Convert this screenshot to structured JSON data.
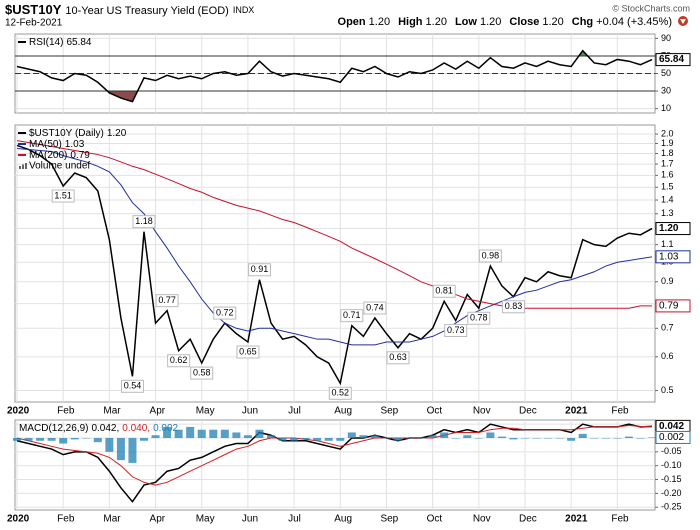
{
  "header": {
    "symbol": "$UST10Y",
    "description": "10-Year US Treasury Yield (EOD)",
    "exchange": "INDX",
    "date": "12-Feb-2021",
    "source": "© StockCharts.com",
    "quote": [
      {
        "label": "Open",
        "value": "1.20"
      },
      {
        "label": "High",
        "value": "1.20"
      },
      {
        "label": "Low",
        "value": "1.20"
      },
      {
        "label": "Close",
        "value": "1.20"
      },
      {
        "label": "Chg",
        "value": "+0.04 (+3.45%)"
      }
    ]
  },
  "chart_data": [
    {
      "type": "line",
      "log": true,
      "ylim": [
        0.47,
        2.1
      ],
      "grid": true,
      "yticks": [
        {
          "value": 2,
          "label": "2.0"
        },
        1.9,
        1.8,
        1.7,
        1.6,
        1.5,
        1.4,
        1.3,
        1.2,
        1.1,
        {
          "value": 1,
          "label": "1.0"
        },
        0.9,
        0.8,
        0.7,
        0.6,
        0.5
      ],
      "categories": [
        "2020",
        null,
        null,
        null,
        "Feb",
        null,
        null,
        null,
        "Mar",
        null,
        null,
        null,
        "Apr",
        null,
        null,
        null,
        "May",
        null,
        null,
        null,
        "Jun",
        null,
        null,
        null,
        "Jul",
        null,
        null,
        null,
        "Aug",
        null,
        null,
        null,
        "Sep",
        null,
        null,
        null,
        "Oct",
        null,
        null,
        null,
        "Nov",
        null,
        null,
        null,
        "Dec",
        null,
        null,
        null,
        "2021",
        null,
        null,
        null,
        "Feb",
        null,
        null,
        null
      ],
      "volume_label": "Volume undef",
      "series": [
        {
          "name": "$UST10Y (Daily)",
          "color": "#000000",
          "label_last": true,
          "values": [
            1.88,
            1.84,
            1.78,
            1.7,
            1.51,
            1.62,
            1.58,
            1.47,
            1.13,
            0.74,
            0.54,
            1.18,
            0.72,
            0.77,
            0.62,
            0.66,
            0.58,
            0.66,
            0.72,
            0.68,
            0.65,
            0.91,
            0.72,
            0.66,
            0.67,
            0.64,
            0.6,
            0.58,
            0.52,
            0.71,
            0.67,
            0.74,
            0.68,
            0.63,
            0.68,
            0.66,
            0.7,
            0.81,
            0.73,
            0.84,
            0.78,
            0.98,
            0.88,
            0.83,
            0.92,
            0.9,
            0.95,
            0.93,
            0.92,
            1.13,
            1.1,
            1.09,
            1.14,
            1.17,
            1.16,
            1.2
          ],
          "value_labels": [
            null,
            null,
            null,
            null,
            "1.51",
            null,
            null,
            null,
            null,
            null,
            "0.54",
            "1.18",
            null,
            "0.77",
            "0.62",
            null,
            "0.58",
            null,
            "0.72",
            null,
            "0.65",
            "0.91",
            null,
            null,
            null,
            null,
            null,
            null,
            "0.52",
            "0.71",
            null,
            "0.74",
            null,
            "0.63",
            null,
            null,
            null,
            "0.81",
            "0.73",
            null,
            "0.78",
            "0.98",
            null,
            "0.83",
            null,
            null,
            null,
            null,
            null,
            null,
            null,
            null,
            null,
            null,
            null,
            "1.20"
          ]
        },
        {
          "name": "MA(50)",
          "color": "#1f2f9f",
          "label_last": true,
          "values": [
            1.85,
            1.84,
            1.83,
            1.82,
            1.78,
            1.75,
            1.72,
            1.68,
            1.63,
            1.52,
            1.38,
            1.3,
            1.18,
            1.08,
            0.98,
            0.9,
            0.82,
            0.76,
            0.72,
            0.7,
            0.69,
            0.7,
            0.7,
            0.69,
            0.68,
            0.67,
            0.66,
            0.66,
            0.65,
            0.64,
            0.64,
            0.64,
            0.65,
            0.65,
            0.65,
            0.66,
            0.67,
            0.69,
            0.72,
            0.75,
            0.77,
            0.79,
            0.81,
            0.83,
            0.85,
            0.86,
            0.88,
            0.9,
            0.91,
            0.93,
            0.95,
            0.98,
            1.0,
            1.01,
            1.02,
            1.03
          ]
        },
        {
          "name": "MA(200)",
          "color": "#c8102e",
          "label_last": true,
          "values": [
            1.93,
            1.91,
            1.89,
            1.87,
            1.85,
            1.83,
            1.81,
            1.79,
            1.76,
            1.72,
            1.68,
            1.65,
            1.61,
            1.57,
            1.53,
            1.49,
            1.46,
            1.42,
            1.39,
            1.36,
            1.34,
            1.32,
            1.29,
            1.26,
            1.24,
            1.21,
            1.18,
            1.15,
            1.12,
            1.08,
            1.05,
            1.02,
            0.99,
            0.96,
            0.93,
            0.9,
            0.88,
            0.86,
            0.84,
            0.82,
            0.81,
            0.8,
            0.79,
            0.78,
            0.78,
            0.78,
            0.78,
            0.78,
            0.78,
            0.78,
            0.78,
            0.78,
            0.78,
            0.78,
            0.79,
            0.79
          ]
        }
      ]
    },
    {
      "type": "line",
      "ylim": [
        5,
        95
      ],
      "yticks": [
        90,
        70,
        50,
        30,
        10
      ],
      "grid": true,
      "levels": [
        {
          "value": 70,
          "dashed": false,
          "fill": "#4c8f53",
          "side": "above"
        },
        {
          "value": 50,
          "dashed": true
        },
        {
          "value": 30,
          "dashed": false,
          "fill": "#8b4b4b",
          "side": "below"
        }
      ],
      "series": [
        {
          "name": "RSI(14)",
          "color": "#000000",
          "label_last": true,
          "values": [
            58,
            55,
            52,
            45,
            42,
            50,
            48,
            40,
            28,
            22,
            18,
            45,
            42,
            48,
            44,
            47,
            44,
            50,
            52,
            48,
            50,
            64,
            52,
            47,
            50,
            48,
            46,
            44,
            40,
            56,
            52,
            58,
            50,
            46,
            52,
            50,
            54,
            62,
            55,
            64,
            56,
            68,
            58,
            56,
            62,
            58,
            64,
            60,
            58,
            76,
            62,
            60,
            66,
            64,
            60,
            65.84
          ]
        }
      ]
    },
    {
      "type": "line",
      "ylim": [
        -0.26,
        0.065
      ],
      "grid": true,
      "yticks": [
        0.05,
        {
          "value": 0,
          "label": "0.00"
        },
        -0.05,
        {
          "value": -0.1,
          "label": "-0.10"
        },
        -0.15,
        {
          "value": -0.2,
          "label": "-0.20"
        },
        -0.25
      ],
      "categories": [
        "2020",
        null,
        null,
        null,
        "Feb",
        null,
        null,
        null,
        "Mar",
        null,
        null,
        null,
        "Apr",
        null,
        null,
        null,
        "May",
        null,
        null,
        null,
        "Jun",
        null,
        null,
        null,
        "Jul",
        null,
        null,
        null,
        "Aug",
        null,
        null,
        null,
        "Sep",
        null,
        null,
        null,
        "Oct",
        null,
        null,
        null,
        "Nov",
        null,
        null,
        null,
        "Dec",
        null,
        null,
        null,
        "2021",
        null,
        null,
        null,
        "Feb",
        null,
        null,
        null
      ],
      "legend_parts": [
        "MACD(12,26,9)",
        "0.042,",
        "0.040,",
        "0.002"
      ],
      "series": [
        {
          "name": "MACD",
          "color": "#000000",
          "label_last": true,
          "values": [
            -0.01,
            -0.02,
            -0.03,
            -0.04,
            -0.06,
            -0.05,
            -0.05,
            -0.07,
            -0.12,
            -0.18,
            -0.23,
            -0.17,
            -0.16,
            -0.12,
            -0.11,
            -0.08,
            -0.07,
            -0.05,
            -0.03,
            -0.02,
            -0.02,
            0.02,
            0.01,
            -0.01,
            -0.01,
            -0.01,
            -0.02,
            -0.03,
            -0.04,
            0.0,
            0.0,
            0.01,
            0.0,
            -0.01,
            0.0,
            0.0,
            0.01,
            0.03,
            0.02,
            0.03,
            0.02,
            0.05,
            0.04,
            0.03,
            0.03,
            0.03,
            0.03,
            0.03,
            0.02,
            0.05,
            0.04,
            0.04,
            0.04,
            0.05,
            0.04,
            0.042
          ]
        },
        {
          "name": "Signal",
          "color": "#d62020",
          "values": [
            0.0,
            -0.01,
            -0.02,
            -0.03,
            -0.04,
            -0.045,
            -0.05,
            -0.055,
            -0.07,
            -0.1,
            -0.14,
            -0.16,
            -0.17,
            -0.16,
            -0.14,
            -0.12,
            -0.1,
            -0.08,
            -0.06,
            -0.04,
            -0.03,
            -0.01,
            0.0,
            0.0,
            0.0,
            -0.005,
            -0.01,
            -0.02,
            -0.03,
            -0.02,
            -0.01,
            0.0,
            0.0,
            0.0,
            0.0,
            0.0,
            0.0,
            0.01,
            0.02,
            0.02,
            0.02,
            0.03,
            0.035,
            0.035,
            0.03,
            0.03,
            0.03,
            0.03,
            0.03,
            0.035,
            0.04,
            0.04,
            0.04,
            0.045,
            0.042,
            0.04
          ]
        },
        {
          "name": "Histogram",
          "type": "bar",
          "color": "#1f7fb4",
          "label_last": true,
          "values": [
            -0.01,
            -0.01,
            -0.01,
            -0.01,
            -0.02,
            -0.005,
            0.0,
            -0.015,
            -0.05,
            -0.08,
            -0.09,
            -0.01,
            0.01,
            0.04,
            0.03,
            0.04,
            0.03,
            0.03,
            0.03,
            0.02,
            0.01,
            0.03,
            0.01,
            -0.01,
            -0.01,
            -0.005,
            -0.01,
            -0.01,
            -0.01,
            0.02,
            0.01,
            0.01,
            0.0,
            -0.01,
            0.0,
            0.0,
            0.01,
            0.02,
            0.0,
            0.01,
            0.0,
            0.02,
            0.005,
            -0.005,
            0.0,
            0.0,
            0.0,
            0.0,
            -0.01,
            0.015,
            0.0,
            0.0,
            0.0,
            0.005,
            -0.002,
            0.002
          ]
        }
      ]
    }
  ]
}
